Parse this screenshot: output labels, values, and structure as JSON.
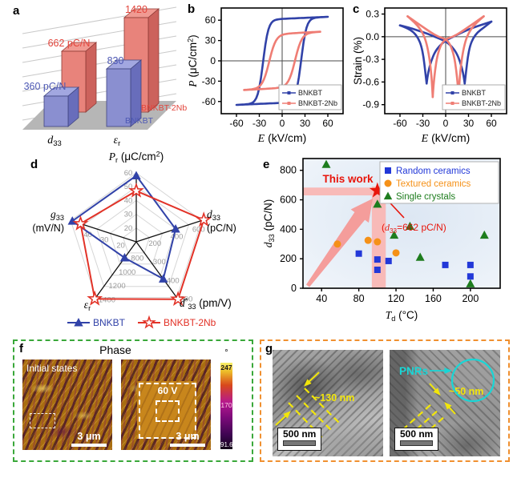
{
  "panels": {
    "a": {
      "label": "a"
    },
    "b": {
      "label": "b"
    },
    "c": {
      "label": "c"
    },
    "d": {
      "label": "d"
    },
    "e": {
      "label": "e"
    },
    "f": {
      "label": "f",
      "title": "Phase",
      "initial_caption": "Initial states",
      "voltage_label": "60 V",
      "scalebar_left": "3 μm",
      "scalebar_right": "3 μm",
      "colorbar": {
        "unit": "°",
        "max": "247",
        "mid": "170",
        "min": "91.6"
      }
    },
    "g": {
      "label": "g",
      "left_annotation": "~130 nm",
      "right_annotation": "~50 nm",
      "pnrs_label": "PNRs",
      "scalebar_left": "500 nm",
      "scalebar_right": "500 nm"
    }
  },
  "colors": {
    "blue": "#3142a8",
    "salmon": "#ef7d74",
    "red": "#e8150b",
    "red_line": "#e23227",
    "legend_blue": "#2238d8",
    "orange": "#f59118",
    "green": "#1e7d1e",
    "pink_band": "#f8bab8",
    "pink_arrow": "#f59693",
    "yellow": "#f2e60a",
    "cyan": "#19d6d6",
    "tick_gray": "#9a9a9a"
  },
  "chart_data": [
    {
      "id": "a",
      "type": "bar",
      "title": "",
      "categories": [
        {
          "label_segments": [
            {
              "t": "d",
              "i": 1
            },
            {
              "t": "33",
              "sub": 1
            }
          ]
        },
        {
          "label_segments": [
            {
              "t": "ε",
              "i": 1
            },
            {
              "t": "r",
              "sub": 1
            }
          ]
        }
      ],
      "series": [
        {
          "name": "BNKBT",
          "values": [
            360,
            830
          ],
          "value_labels": [
            "360 pC/N",
            "830"
          ]
        },
        {
          "name": "BNKBT-2Nb",
          "values": [
            662,
            1420
          ],
          "value_labels": [
            "662 pC/N",
            "1420"
          ]
        }
      ]
    },
    {
      "id": "b",
      "type": "line",
      "xlabel_segments": [
        {
          "t": "E",
          "i": 1
        },
        {
          "t": " (kV/cm)"
        }
      ],
      "ylabel_segments": [
        {
          "t": "P",
          "i": 1
        },
        {
          "t": " (μC/cm"
        },
        {
          "t": "2",
          "sup": 1
        },
        {
          "t": ")"
        }
      ],
      "xlim": [
        -80,
        80
      ],
      "ylim": [
        -78,
        78
      ],
      "xticks": [
        -60,
        -30,
        0,
        30,
        60
      ],
      "yticks": [
        60,
        30,
        0,
        -30,
        -60
      ],
      "legend": [
        "BNKBT",
        "BNKBT-2Nb"
      ],
      "loops": [
        {
          "name": "BNKBT",
          "Pmax": 65,
          "Pr": 57,
          "Ec": 25,
          "Emax": 60,
          "Ps": 62,
          "w": 7,
          "k": 0.05
        },
        {
          "name": "BNKBT-2Nb",
          "Pmax": 43,
          "Pr": 39,
          "Ec": 17,
          "Emax": 50,
          "Ps": 40,
          "w": 9,
          "k": 0.06
        }
      ]
    },
    {
      "id": "c",
      "type": "line",
      "xlabel_segments": [
        {
          "t": "E",
          "i": 1
        },
        {
          "t": " (kV/cm)"
        }
      ],
      "ylabel": "Strain (%)",
      "xlim": [
        -80,
        80
      ],
      "ylim": [
        -1.02,
        0.38
      ],
      "xticks": [
        -60,
        -30,
        0,
        30,
        60
      ],
      "yticks": [
        0.3,
        0.0,
        -0.3,
        -0.6,
        -0.9
      ],
      "legend": [
        "BNKBT",
        "BNKBT-2Nb"
      ],
      "series": [
        {
          "name": "BNKBT",
          "branches": [
            [
              [
                60,
                0.2
              ],
              [
                48,
                0.16
              ],
              [
                36,
                0.12
              ],
              [
                24,
                0.07
              ],
              [
                12,
                0.01
              ],
              [
                0,
                -0.05
              ],
              [
                -8,
                -0.12
              ],
              [
                -14,
                -0.2
              ],
              [
                -19,
                -0.32
              ],
              [
                -23,
                -0.47
              ],
              [
                -25,
                -0.62
              ]
            ],
            [
              [
                -25,
                -0.62
              ],
              [
                -27,
                -0.45
              ],
              [
                -29,
                -0.27
              ],
              [
                -32,
                -0.12
              ],
              [
                -36,
                -0.02
              ],
              [
                -42,
                0.06
              ],
              [
                -50,
                0.11
              ],
              [
                -60,
                0.15
              ]
            ],
            [
              [
                -60,
                0.15
              ],
              [
                -48,
                0.12
              ],
              [
                -36,
                0.08
              ],
              [
                -24,
                0.04
              ],
              [
                -12,
                -0.01
              ],
              [
                0,
                -0.06
              ],
              [
                8,
                -0.13
              ],
              [
                14,
                -0.21
              ],
              [
                19,
                -0.33
              ],
              [
                23,
                -0.48
              ],
              [
                25,
                -0.62
              ]
            ],
            [
              [
                25,
                -0.62
              ],
              [
                27,
                -0.45
              ],
              [
                29,
                -0.27
              ],
              [
                32,
                -0.12
              ],
              [
                36,
                -0.02
              ],
              [
                42,
                0.06
              ],
              [
                50,
                0.12
              ],
              [
                60,
                0.2
              ]
            ]
          ]
        },
        {
          "name": "BNKBT-2Nb",
          "branches": [
            [
              [
                50,
                0.27
              ],
              [
                40,
                0.2
              ],
              [
                30,
                0.13
              ],
              [
                20,
                0.06
              ],
              [
                10,
                0.0
              ],
              [
                0,
                -0.03
              ],
              [
                -6,
                -0.1
              ],
              [
                -11,
                -0.25
              ],
              [
                -14,
                -0.45
              ],
              [
                -16,
                -0.65
              ],
              [
                -17,
                -0.8
              ]
            ],
            [
              [
                -17,
                -0.8
              ],
              [
                -18,
                -0.6
              ],
              [
                -20,
                -0.38
              ],
              [
                -23,
                -0.18
              ],
              [
                -27,
                -0.02
              ],
              [
                -33,
                0.1
              ],
              [
                -41,
                0.19
              ],
              [
                -50,
                0.27
              ]
            ],
            [
              [
                -50,
                0.27
              ],
              [
                -40,
                0.2
              ],
              [
                -30,
                0.13
              ],
              [
                -20,
                0.06
              ],
              [
                -10,
                0.0
              ],
              [
                0,
                -0.03
              ],
              [
                6,
                -0.1
              ],
              [
                11,
                -0.25
              ],
              [
                14,
                -0.45
              ],
              [
                16,
                -0.65
              ],
              [
                17,
                -0.8
              ]
            ],
            [
              [
                17,
                -0.8
              ],
              [
                18,
                -0.6
              ],
              [
                20,
                -0.38
              ],
              [
                23,
                -0.18
              ],
              [
                27,
                -0.02
              ],
              [
                33,
                0.1
              ],
              [
                41,
                0.19
              ],
              [
                50,
                0.27
              ]
            ]
          ]
        }
      ]
    },
    {
      "id": "d",
      "type": "radar",
      "axes": [
        {
          "name": "Pr",
          "title_segments": [
            {
              "t": "P",
              "i": 1
            },
            {
              "t": "r",
              "sub": 1
            },
            {
              "t": " (μC/cm"
            },
            {
              "t": "2",
              "sup": 1
            },
            {
              "t": ")"
            }
          ],
          "min": 10,
          "max": 60,
          "ticks": [
            20,
            30,
            40,
            50,
            60
          ]
        },
        {
          "name": "d33",
          "title_segments": [
            {
              "t": "d",
              "i": 1
            },
            {
              "t": "33",
              "sub": 1
            }
          ],
          "unit": "(pC/N)",
          "min": 0,
          "max": 600,
          "ticks": [
            200,
            400,
            600
          ]
        },
        {
          "name": "d*33",
          "title_segments": [
            {
              "t": "d",
              "i": 1
            },
            {
              "t": "*",
              "sup": 1
            },
            {
              "t": "33",
              "sub": 1
            },
            {
              "t": " (pm/V)"
            }
          ],
          "min": 200,
          "max": 500,
          "ticks": [
            300,
            400,
            500
          ]
        },
        {
          "name": "εr",
          "title_segments": [
            {
              "t": "ε",
              "i": 1
            },
            {
              "t": "r",
              "sub": 1
            }
          ],
          "min": 600,
          "max": 1400,
          "ticks": [
            800,
            1000,
            1200,
            1400
          ]
        },
        {
          "name": "g33",
          "title_segments": [
            {
              "t": "g",
              "i": 1
            },
            {
              "t": "33",
              "sub": 1
            }
          ],
          "unit": "(mV/N)",
          "min": 10,
          "max": 50,
          "ticks": [
            20,
            30,
            40
          ]
        }
      ],
      "series": [
        {
          "name": "BNKBT",
          "marker": "triangle",
          "values": [
            58,
            360,
            400,
            830,
            49
          ]
        },
        {
          "name": "BNKBT-2Nb",
          "marker": "star",
          "values": [
            47,
            662,
            520,
            1420,
            44
          ]
        }
      ]
    },
    {
      "id": "e",
      "type": "scatter",
      "xlabel_segments": [
        {
          "t": "T",
          "i": 1
        },
        {
          "t": "d",
          "sub": 1
        },
        {
          "t": " (°C)"
        }
      ],
      "ylabel_segments": [
        {
          "t": "d",
          "i": 1
        },
        {
          "t": "33",
          "sub": 1
        },
        {
          "t": " (pC/N)"
        }
      ],
      "xlim": [
        20,
        232
      ],
      "ylim": [
        0,
        880
      ],
      "xticks": [
        40,
        80,
        120,
        160,
        200
      ],
      "yticks": [
        0,
        200,
        400,
        600,
        800
      ],
      "series": [
        {
          "name": "Random ceramics",
          "marker": "square",
          "points": [
            [
              80,
              235
            ],
            [
              100,
              195
            ],
            [
              100,
              125
            ],
            [
              112,
              185
            ],
            [
              173,
              158
            ],
            [
              200,
              158
            ],
            [
              200,
              80
            ]
          ]
        },
        {
          "name": "Textured ceramics",
          "marker": "circle",
          "points": [
            [
              57,
              300
            ],
            [
              90,
              325
            ],
            [
              100,
              315
            ],
            [
              120,
              240
            ]
          ]
        },
        {
          "name": "Single crystals",
          "marker": "triangle",
          "points": [
            [
              45,
              840
            ],
            [
              100,
              570
            ],
            [
              118,
              360
            ],
            [
              135,
              420
            ],
            [
              146,
              210
            ],
            [
              200,
              30
            ],
            [
              215,
              360
            ]
          ]
        }
      ],
      "highlight": {
        "point": [
          100,
          662
        ],
        "label": "This work",
        "annotation_segments": [
          {
            "t": "("
          },
          {
            "t": "d",
            "i": 1
          },
          {
            "t": "33",
            "sub": 1
          },
          {
            "t": "=662 pC/N)"
          }
        ]
      }
    }
  ]
}
